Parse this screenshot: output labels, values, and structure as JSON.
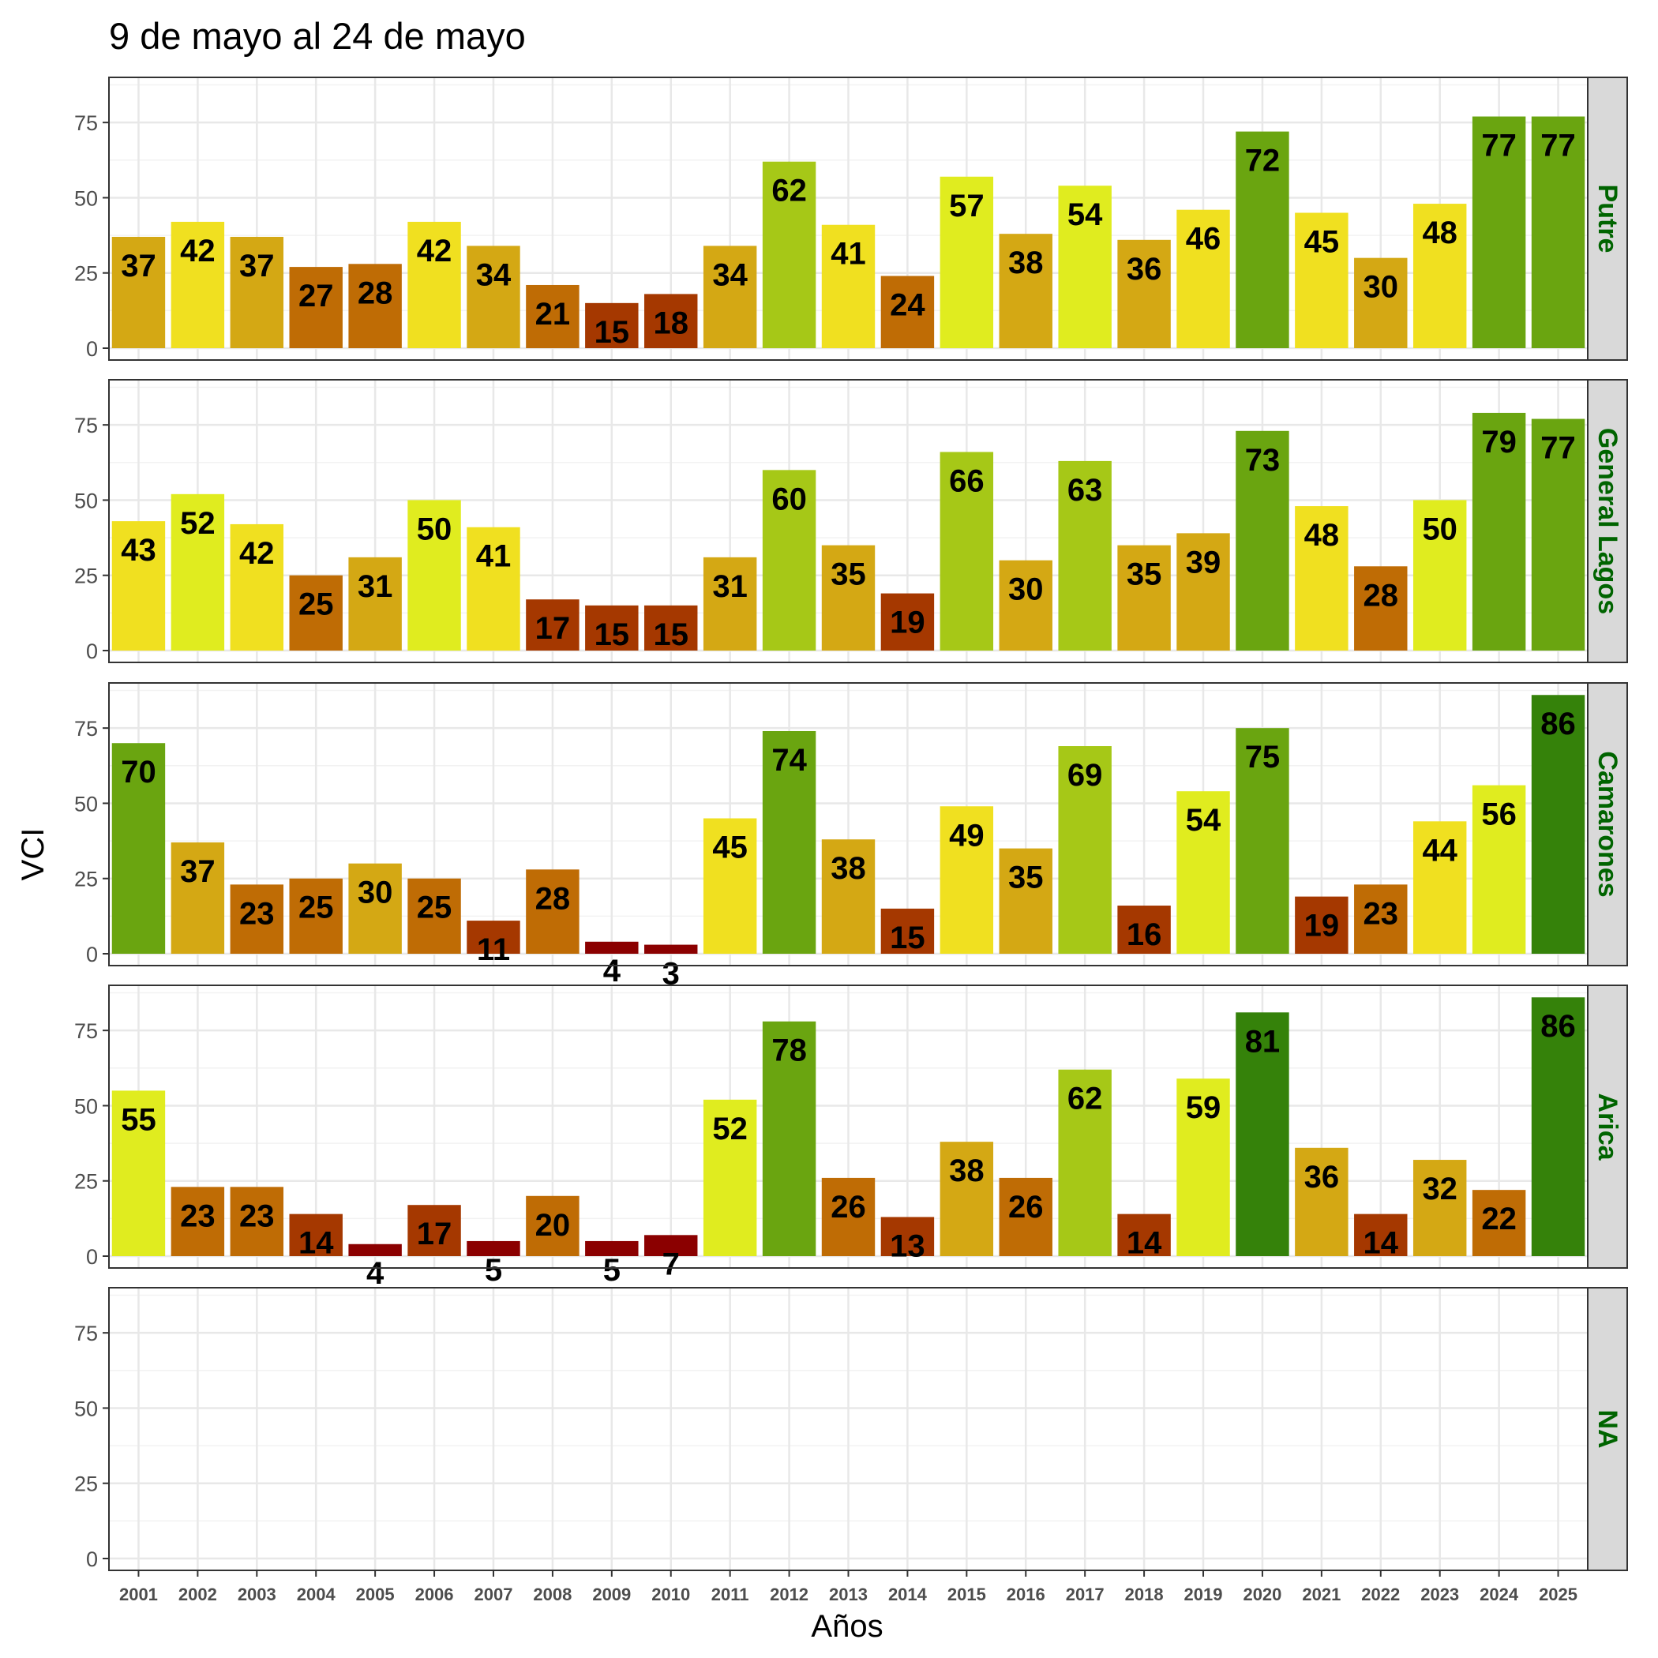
{
  "chart_data": {
    "type": "bar",
    "title": "9 de mayo al 24 de mayo",
    "xlabel": "Años",
    "ylabel": "VCI",
    "ylim": [
      0,
      90
    ],
    "yticks": [
      0,
      25,
      50,
      75
    ],
    "categories": [
      "2001",
      "2002",
      "2003",
      "2004",
      "2005",
      "2006",
      "2007",
      "2008",
      "2009",
      "2010",
      "2011",
      "2012",
      "2013",
      "2014",
      "2015",
      "2016",
      "2017",
      "2018",
      "2019",
      "2020",
      "2021",
      "2022",
      "2023",
      "2024",
      "2025"
    ],
    "panels": [
      {
        "name": "Putre",
        "values": [
          37,
          42,
          37,
          27,
          28,
          42,
          34,
          21,
          15,
          18,
          34,
          62,
          41,
          24,
          57,
          38,
          54,
          36,
          46,
          72,
          45,
          30,
          48,
          77,
          77
        ]
      },
      {
        "name": "General Lagos",
        "values": [
          43,
          52,
          42,
          25,
          31,
          50,
          41,
          17,
          15,
          15,
          31,
          60,
          35,
          19,
          66,
          30,
          63,
          35,
          39,
          73,
          48,
          28,
          50,
          79,
          77
        ]
      },
      {
        "name": "Camarones",
        "values": [
          70,
          37,
          23,
          25,
          30,
          25,
          11,
          28,
          4,
          3,
          45,
          74,
          38,
          15,
          49,
          35,
          69,
          16,
          54,
          75,
          19,
          23,
          44,
          56,
          86
        ]
      },
      {
        "name": "Arica",
        "values": [
          55,
          23,
          23,
          14,
          4,
          17,
          5,
          20,
          5,
          7,
          52,
          78,
          26,
          13,
          38,
          26,
          62,
          14,
          59,
          81,
          36,
          14,
          32,
          22,
          86
        ]
      },
      {
        "name": "NA",
        "values": []
      }
    ],
    "grid": true,
    "strip_color": "#006400",
    "color_scale": [
      {
        "min": 0,
        "color": "#8b0000"
      },
      {
        "min": 10,
        "color": "#a53800"
      },
      {
        "min": 20,
        "color": "#bf6c05"
      },
      {
        "min": 30,
        "color": "#d4a814"
      },
      {
        "min": 40,
        "color": "#f0e020"
      },
      {
        "min": 50,
        "color": "#e0ec1f"
      },
      {
        "min": 60,
        "color": "#a6c817"
      },
      {
        "min": 70,
        "color": "#6aa510"
      },
      {
        "min": 80,
        "color": "#35820a"
      }
    ]
  }
}
